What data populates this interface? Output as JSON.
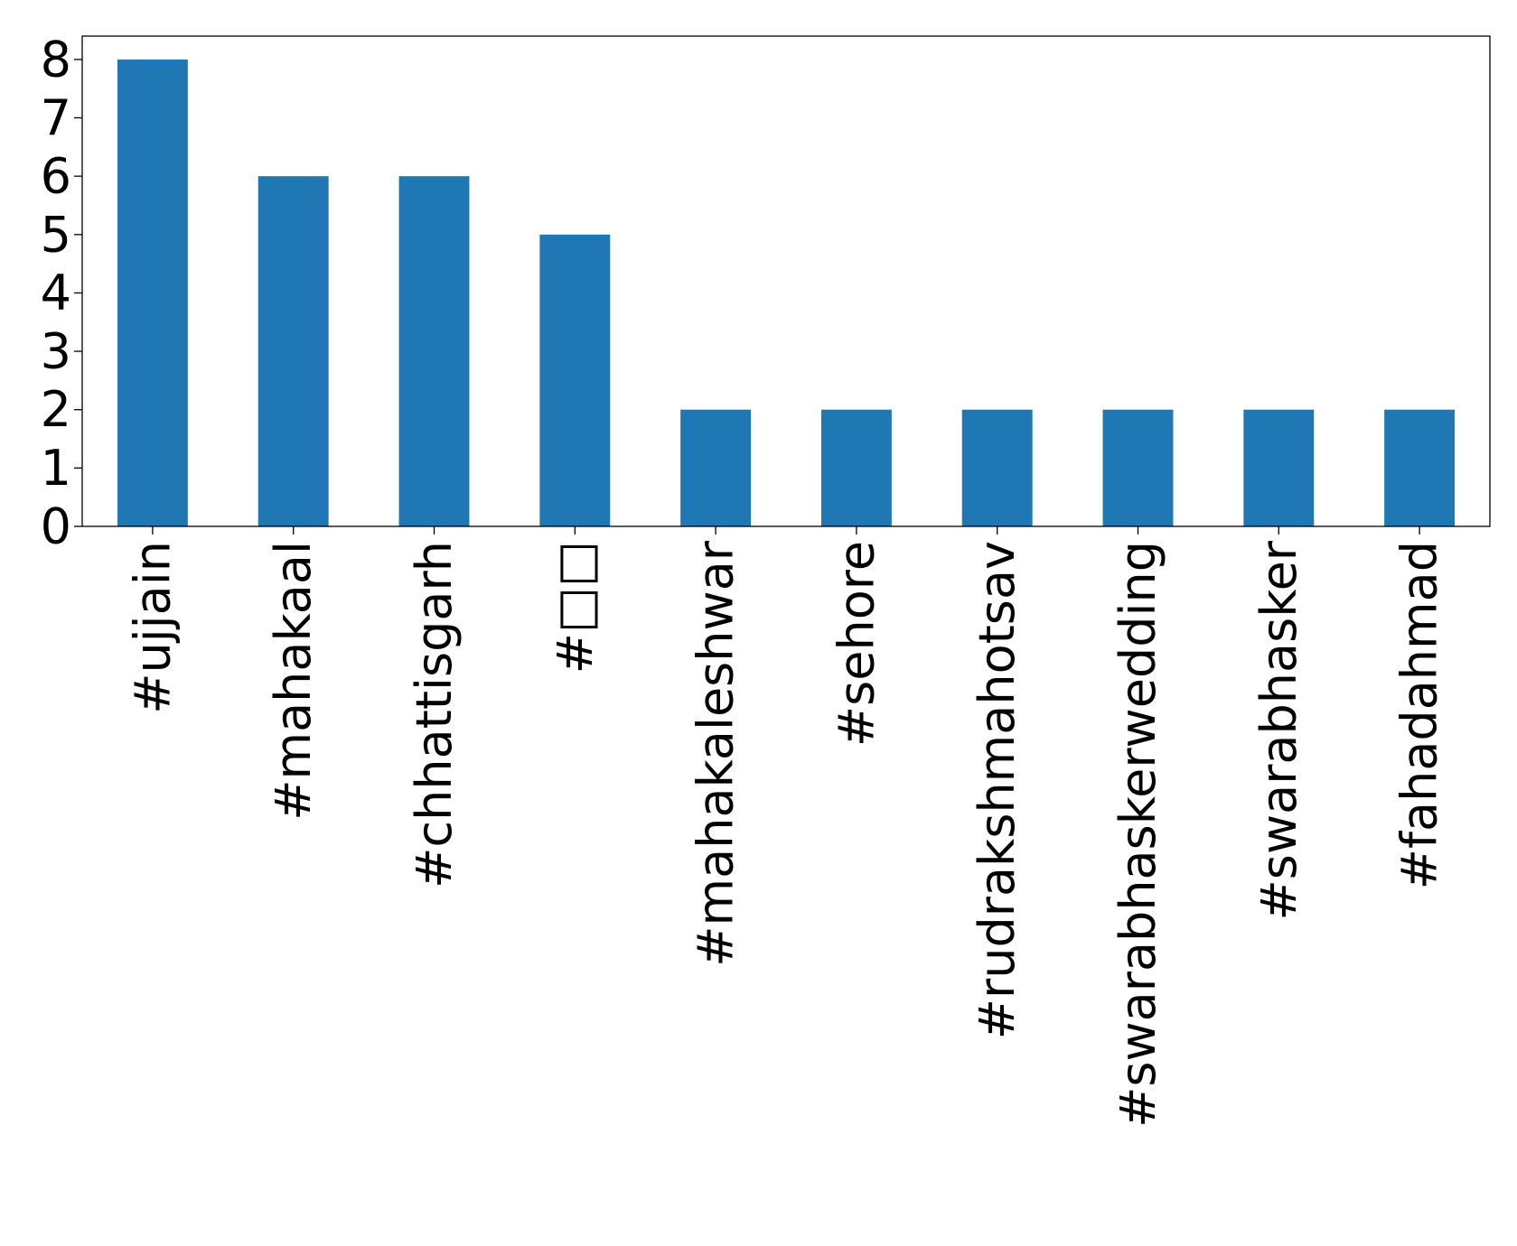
{
  "chart_data": {
    "type": "bar",
    "categories": [
      "#ujjain",
      "#mahakaal",
      "#chhattisgarh",
      "#□□",
      "#mahakaleshwar",
      "#sehore",
      "#rudrakshmahotsav",
      "#swarabhaskerwedding",
      "#swarabhasker",
      "#fahadahmad"
    ],
    "values": [
      8,
      6,
      6,
      5,
      2,
      2,
      2,
      2,
      2,
      2
    ],
    "ylim": [
      0,
      8.4
    ],
    "yticks": [
      0,
      1,
      2,
      3,
      4,
      5,
      6,
      7,
      8
    ],
    "bar_color": "#1f77b4",
    "grid": false,
    "legend": "none"
  }
}
